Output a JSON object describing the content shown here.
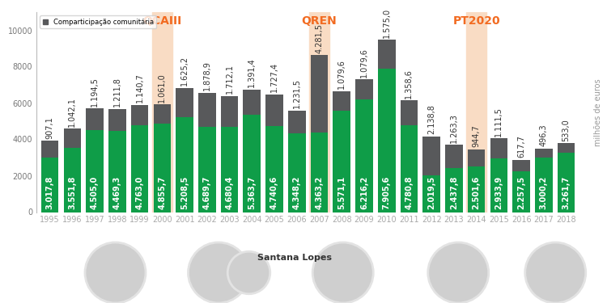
{
  "chart_data": {
    "type": "bar",
    "stacked": true,
    "data_labels": true,
    "categories": [
      "1995",
      "1996",
      "1997",
      "1998",
      "1999",
      "2000",
      "2001",
      "2002",
      "2003",
      "2004",
      "2005",
      "2006",
      "2007",
      "2008",
      "2009",
      "2010",
      "2011",
      "2012",
      "2013",
      "2014",
      "2015",
      "2016",
      "2017",
      "2018"
    ],
    "series": [
      {
        "color": "#0f9d48",
        "values": [
          3017.8,
          3551.8,
          4505.0,
          4469.3,
          4763.0,
          4855.7,
          5208.5,
          4689.7,
          4680.4,
          5363.7,
          4740.6,
          4348.2,
          4363.2,
          5571.1,
          6216.2,
          7905.6,
          4780.8,
          2019.5,
          2437.8,
          2501.6,
          2933.9,
          2257.5,
          3000.2,
          3261.7
        ],
        "value_labels": [
          "3.017,8",
          "3.551,8",
          "4.505,0",
          "4.469,3",
          "4.763,0",
          "4.855,7",
          "5.208,5",
          "4.689,7",
          "4.680,4",
          "5.363,7",
          "4.740,6",
          "4.348,2",
          "4.363,2",
          "5.571,1",
          "6.216,2",
          "7.905,6",
          "4.780,8",
          "2.019,5",
          "2.437,8",
          "2.501,6",
          "2.933,9",
          "2.257,5",
          "3.000,2",
          "3.261,7"
        ]
      },
      {
        "name": "Comparticipação comunitária",
        "color": "#58595b",
        "values": [
          907.1,
          1042.1,
          1194.5,
          1211.8,
          1140.7,
          1061.0,
          1625.2,
          1878.9,
          1712.1,
          1391.4,
          1727.4,
          1231.5,
          4281.5,
          1079.6,
          1079.6,
          1575.0,
          1358.6,
          2138.8,
          1263.3,
          944.7,
          1111.5,
          617.7,
          496.3,
          533.0
        ],
        "value_labels": [
          "907,1",
          "1.042,1",
          "1.194,5",
          "1.211,8",
          "1.140,7",
          "1.061,0",
          "1.625,2",
          "1.878,9",
          "1.712,1",
          "1.391,4",
          "1.727,4",
          "1.231,5",
          "4.281,5",
          "1.079,6",
          "1.079,6",
          "1.575,0",
          "1.358,6",
          "2.138,8",
          "1.263,3",
          "944,7",
          "1.111,5",
          "617,7",
          "496,3",
          "533,0"
        ]
      }
    ],
    "ylim": [
      0,
      11000
    ],
    "yticks": [
      0,
      2000,
      4000,
      6000,
      8000,
      10000
    ],
    "ylabel": "milhões de euros",
    "legend": "upper left",
    "annotations": [
      {
        "text": "QCAIII",
        "x": "2000"
      },
      {
        "text": "QREN",
        "x": "2007"
      },
      {
        "text": "PT2020",
        "x": "2014"
      }
    ],
    "photo_labels": [
      "Santana Lopes"
    ]
  }
}
